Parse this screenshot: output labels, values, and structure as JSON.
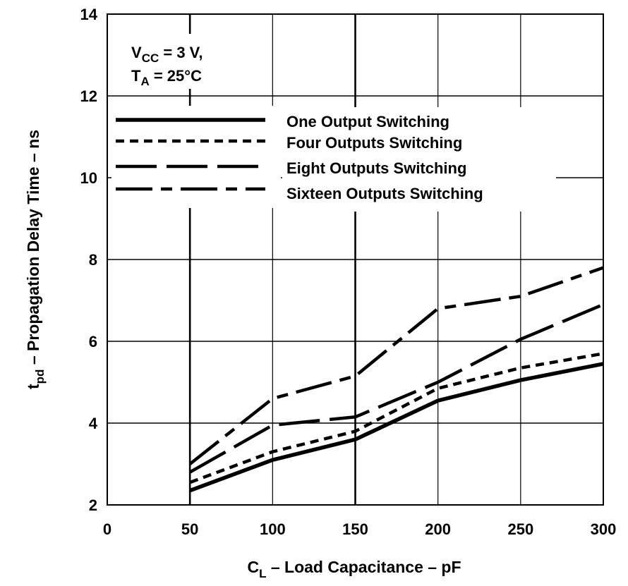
{
  "chart_data": {
    "type": "line",
    "xlabel": {
      "main": "C",
      "sub": "L",
      "rest": " – Load Capacitance – pF"
    },
    "ylabel": {
      "main": "t",
      "sub": "pd",
      "rest": " – Propagation Delay Time – ns"
    },
    "xlim": [
      0,
      300
    ],
    "ylim": [
      2,
      14
    ],
    "xticks": [
      0,
      50,
      100,
      150,
      200,
      250,
      300
    ],
    "yticks": [
      2,
      4,
      6,
      8,
      10,
      12,
      14
    ],
    "grid": true,
    "legend_placement": "top-left",
    "annotation": {
      "line1": {
        "main": "V",
        "sub": "CC",
        "rest": " = 3 V,"
      },
      "line2": {
        "main": "T",
        "sub": "A",
        "rest": " = 25°C"
      }
    },
    "x": [
      50,
      100,
      150,
      200,
      250,
      300
    ],
    "series": [
      {
        "name": "One Output Switching",
        "style": "solid",
        "values": [
          2.35,
          3.1,
          3.6,
          4.55,
          5.05,
          5.45
        ]
      },
      {
        "name": "Four Outputs Switching",
        "style": "dotted",
        "values": [
          2.55,
          3.3,
          3.8,
          4.85,
          5.35,
          5.7
        ]
      },
      {
        "name": "Eight Outputs Switching",
        "style": "long-dash",
        "values": [
          2.8,
          3.95,
          4.15,
          5.0,
          6.05,
          6.9
        ]
      },
      {
        "name": "Sixteen Outputs Switching",
        "style": "dash-dot",
        "values": [
          3.0,
          4.6,
          5.15,
          6.8,
          7.1,
          7.8
        ]
      }
    ]
  }
}
